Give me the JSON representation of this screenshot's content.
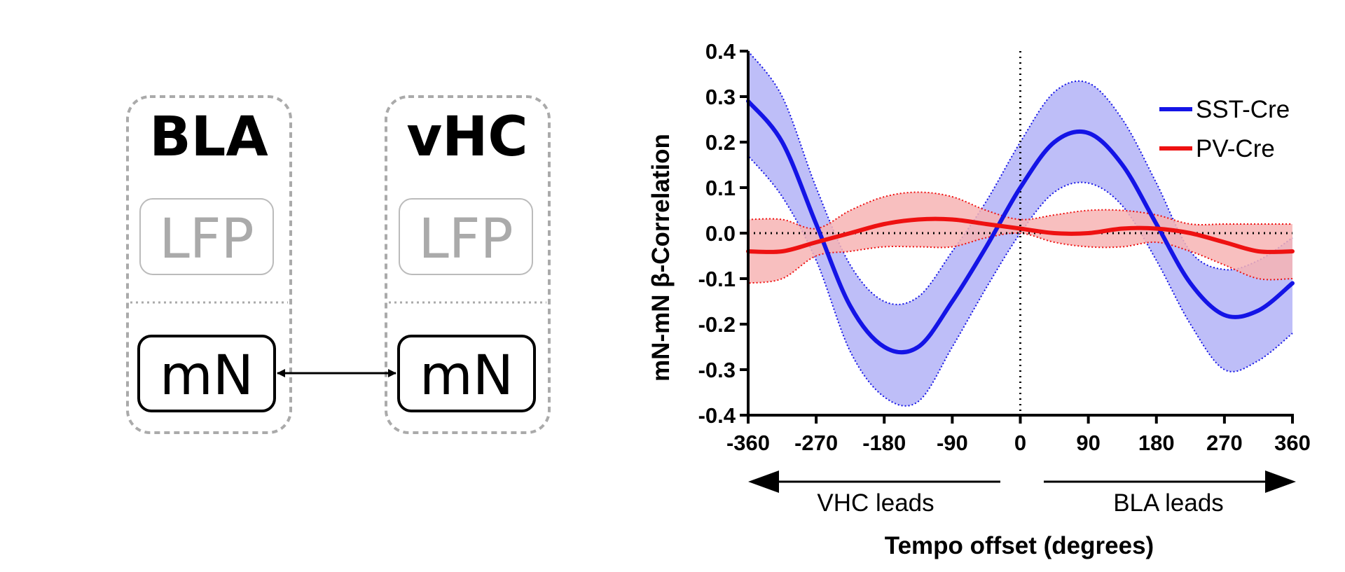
{
  "diagram": {
    "regions": [
      {
        "name": "BLA",
        "lfp_label": "LFP",
        "neuron_label": "mN"
      },
      {
        "name": "vHC",
        "lfp_label": "LFP",
        "neuron_label": "mN"
      }
    ]
  },
  "chart_data": {
    "type": "line",
    "title": "",
    "xlabel": "Tempo offset (degrees)",
    "ylabel": "mN-mN β-Correlation",
    "xlim": [
      -360,
      360
    ],
    "ylim": [
      -0.4,
      0.4
    ],
    "x_ticks": [
      "-360",
      "-270",
      "-180",
      "-90",
      "0",
      "90",
      "180",
      "270",
      "360"
    ],
    "y_ticks": [
      "0.4",
      "0.3",
      "0.2",
      "0.1",
      "0.0",
      "-0.1",
      "-0.2",
      "-0.3",
      "-0.4"
    ],
    "lead_labels": {
      "left": "VHC leads",
      "right": "BLA leads"
    },
    "reference_lines": {
      "y_zero": "dotted",
      "x_zero": "dotted"
    },
    "legend_position": "top-right",
    "x": [
      -360,
      -315,
      -270,
      -225,
      -180,
      -135,
      -90,
      -45,
      0,
      45,
      90,
      135,
      180,
      225,
      270,
      315,
      360
    ],
    "series": [
      {
        "name": "SST-Cre",
        "color": "#1414e6",
        "band_color": "#b3b3f7",
        "values": [
          0.29,
          0.2,
          0.02,
          -0.16,
          -0.25,
          -0.25,
          -0.15,
          -0.03,
          0.1,
          0.2,
          0.22,
          0.15,
          0.02,
          -0.11,
          -0.18,
          -0.17,
          -0.11
        ],
        "upper": [
          0.4,
          0.3,
          0.1,
          -0.07,
          -0.15,
          -0.14,
          -0.04,
          0.07,
          0.2,
          0.31,
          0.33,
          0.25,
          0.11,
          -0.04,
          -0.08,
          -0.06,
          -0.01
        ],
        "lower": [
          0.17,
          0.08,
          -0.06,
          -0.26,
          -0.36,
          -0.37,
          -0.25,
          -0.12,
          0.0,
          0.09,
          0.11,
          0.06,
          -0.06,
          -0.2,
          -0.3,
          -0.28,
          -0.22
        ]
      },
      {
        "name": "PV-Cre",
        "color": "#ee1111",
        "band_color": "#f7b4b4",
        "values": [
          -0.04,
          -0.04,
          -0.02,
          0.0,
          0.02,
          0.03,
          0.03,
          0.02,
          0.01,
          0.0,
          0.0,
          0.01,
          0.01,
          0.0,
          -0.02,
          -0.04,
          -0.04
        ],
        "upper": [
          0.03,
          0.03,
          0.01,
          0.05,
          0.08,
          0.09,
          0.08,
          0.05,
          0.03,
          0.04,
          0.05,
          0.05,
          0.04,
          0.02,
          0.02,
          0.02,
          0.02
        ],
        "lower": [
          -0.11,
          -0.1,
          -0.05,
          -0.04,
          -0.03,
          -0.03,
          -0.03,
          -0.01,
          0.0,
          -0.02,
          -0.03,
          -0.03,
          -0.02,
          -0.04,
          -0.07,
          -0.1,
          -0.1
        ]
      }
    ]
  }
}
